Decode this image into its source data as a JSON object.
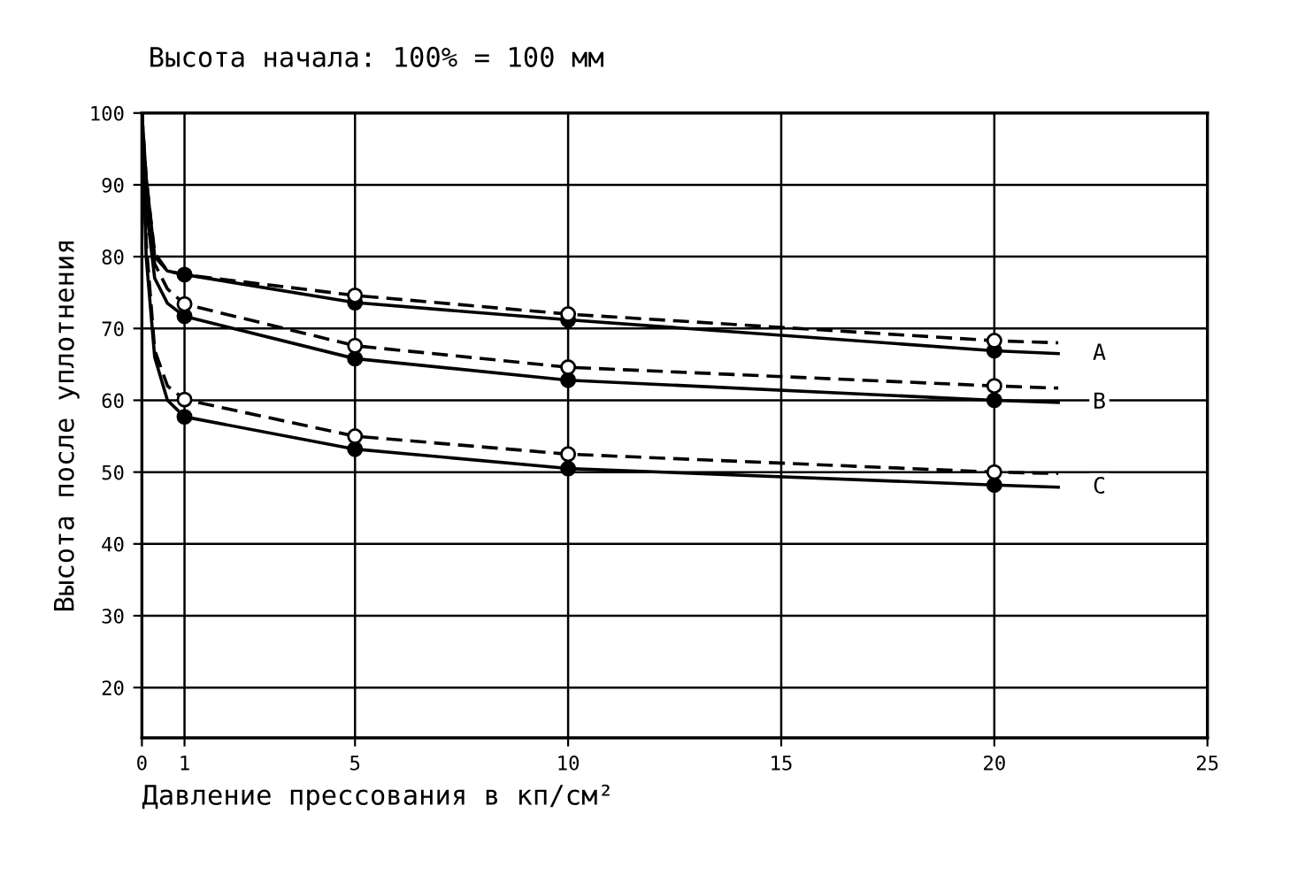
{
  "chart_data": {
    "type": "line",
    "title": "Высота начала: 100% = 100 мм",
    "xlabel": "Давление прессования в кп/см²",
    "ylabel": "Высота после уплотнения",
    "xlim": [
      0,
      25
    ],
    "xticks": [
      0,
      1,
      5,
      10,
      15,
      20,
      25
    ],
    "ylim": [
      13,
      100
    ],
    "yticks": [
      20,
      30,
      40,
      50,
      60,
      70,
      80,
      90,
      100
    ],
    "grid": true,
    "series": [
      {
        "name": "A",
        "color": "#000000",
        "line_style": "solid",
        "marker": "none",
        "x": [
          0,
          0.1,
          0.3,
          0.6,
          1,
          5,
          10,
          20,
          21.5
        ],
        "values": [
          100,
          91,
          80,
          78,
          77.5,
          73.6,
          71.2,
          66.9,
          66.5
        ]
      },
      {
        "color": "#000000",
        "line_style": "dashed",
        "marker": "none",
        "x": [
          0,
          0.1,
          0.3,
          0.6,
          1,
          5,
          10,
          20,
          21.5
        ],
        "values": [
          100,
          91,
          80.5,
          78,
          77.5,
          74.6,
          72.0,
          68.3,
          68.0
        ]
      },
      {
        "name": "B",
        "color": "#000000",
        "line_style": "solid",
        "marker": "none",
        "x": [
          0,
          0.1,
          0.3,
          0.6,
          1,
          5,
          10,
          20,
          21.5
        ],
        "values": [
          100,
          87,
          77,
          73.5,
          71.7,
          65.8,
          62.8,
          60.0,
          59.7
        ]
      },
      {
        "color": "#000000",
        "line_style": "dashed",
        "marker": "none",
        "x": [
          0,
          0.1,
          0.3,
          0.6,
          1,
          5,
          10,
          20,
          21.5
        ],
        "values": [
          100,
          88,
          79,
          75.5,
          73.4,
          67.6,
          64.6,
          62.0,
          61.7
        ]
      },
      {
        "name": "C",
        "color": "#000000",
        "line_style": "solid",
        "marker": "none",
        "x": [
          0,
          0.1,
          0.3,
          0.6,
          1,
          5,
          10,
          20,
          21.5
        ],
        "values": [
          100,
          80,
          66,
          60,
          57.7,
          53.2,
          50.5,
          48.2,
          47.9
        ]
      },
      {
        "color": "#000000",
        "line_style": "dashed",
        "marker": "none",
        "x": [
          0,
          0.1,
          0.3,
          0.6,
          1,
          5,
          10,
          20,
          21.5
        ],
        "values": [
          100,
          82,
          67,
          62,
          60.1,
          55.0,
          52.5,
          50.0,
          49.8
        ]
      },
      {
        "type": "scatter",
        "color": "#000000",
        "marker": "circle",
        "x": [
          1,
          5,
          10,
          20,
          1,
          5,
          10,
          20,
          1,
          5,
          10,
          20
        ],
        "values": [
          77.5,
          73.6,
          71.2,
          66.9,
          71.7,
          65.8,
          62.8,
          60.0,
          57.7,
          53.2,
          50.5,
          48.2
        ]
      },
      {
        "type": "scatter",
        "color": "#ffffff",
        "marker": "circle",
        "x": [
          5,
          10,
          20,
          1,
          5,
          10,
          20,
          1,
          5,
          10,
          20
        ],
        "values": [
          74.6,
          72.0,
          68.3,
          73.4,
          67.6,
          64.6,
          62.0,
          60.1,
          55.0,
          52.5,
          50.0
        ]
      }
    ]
  }
}
